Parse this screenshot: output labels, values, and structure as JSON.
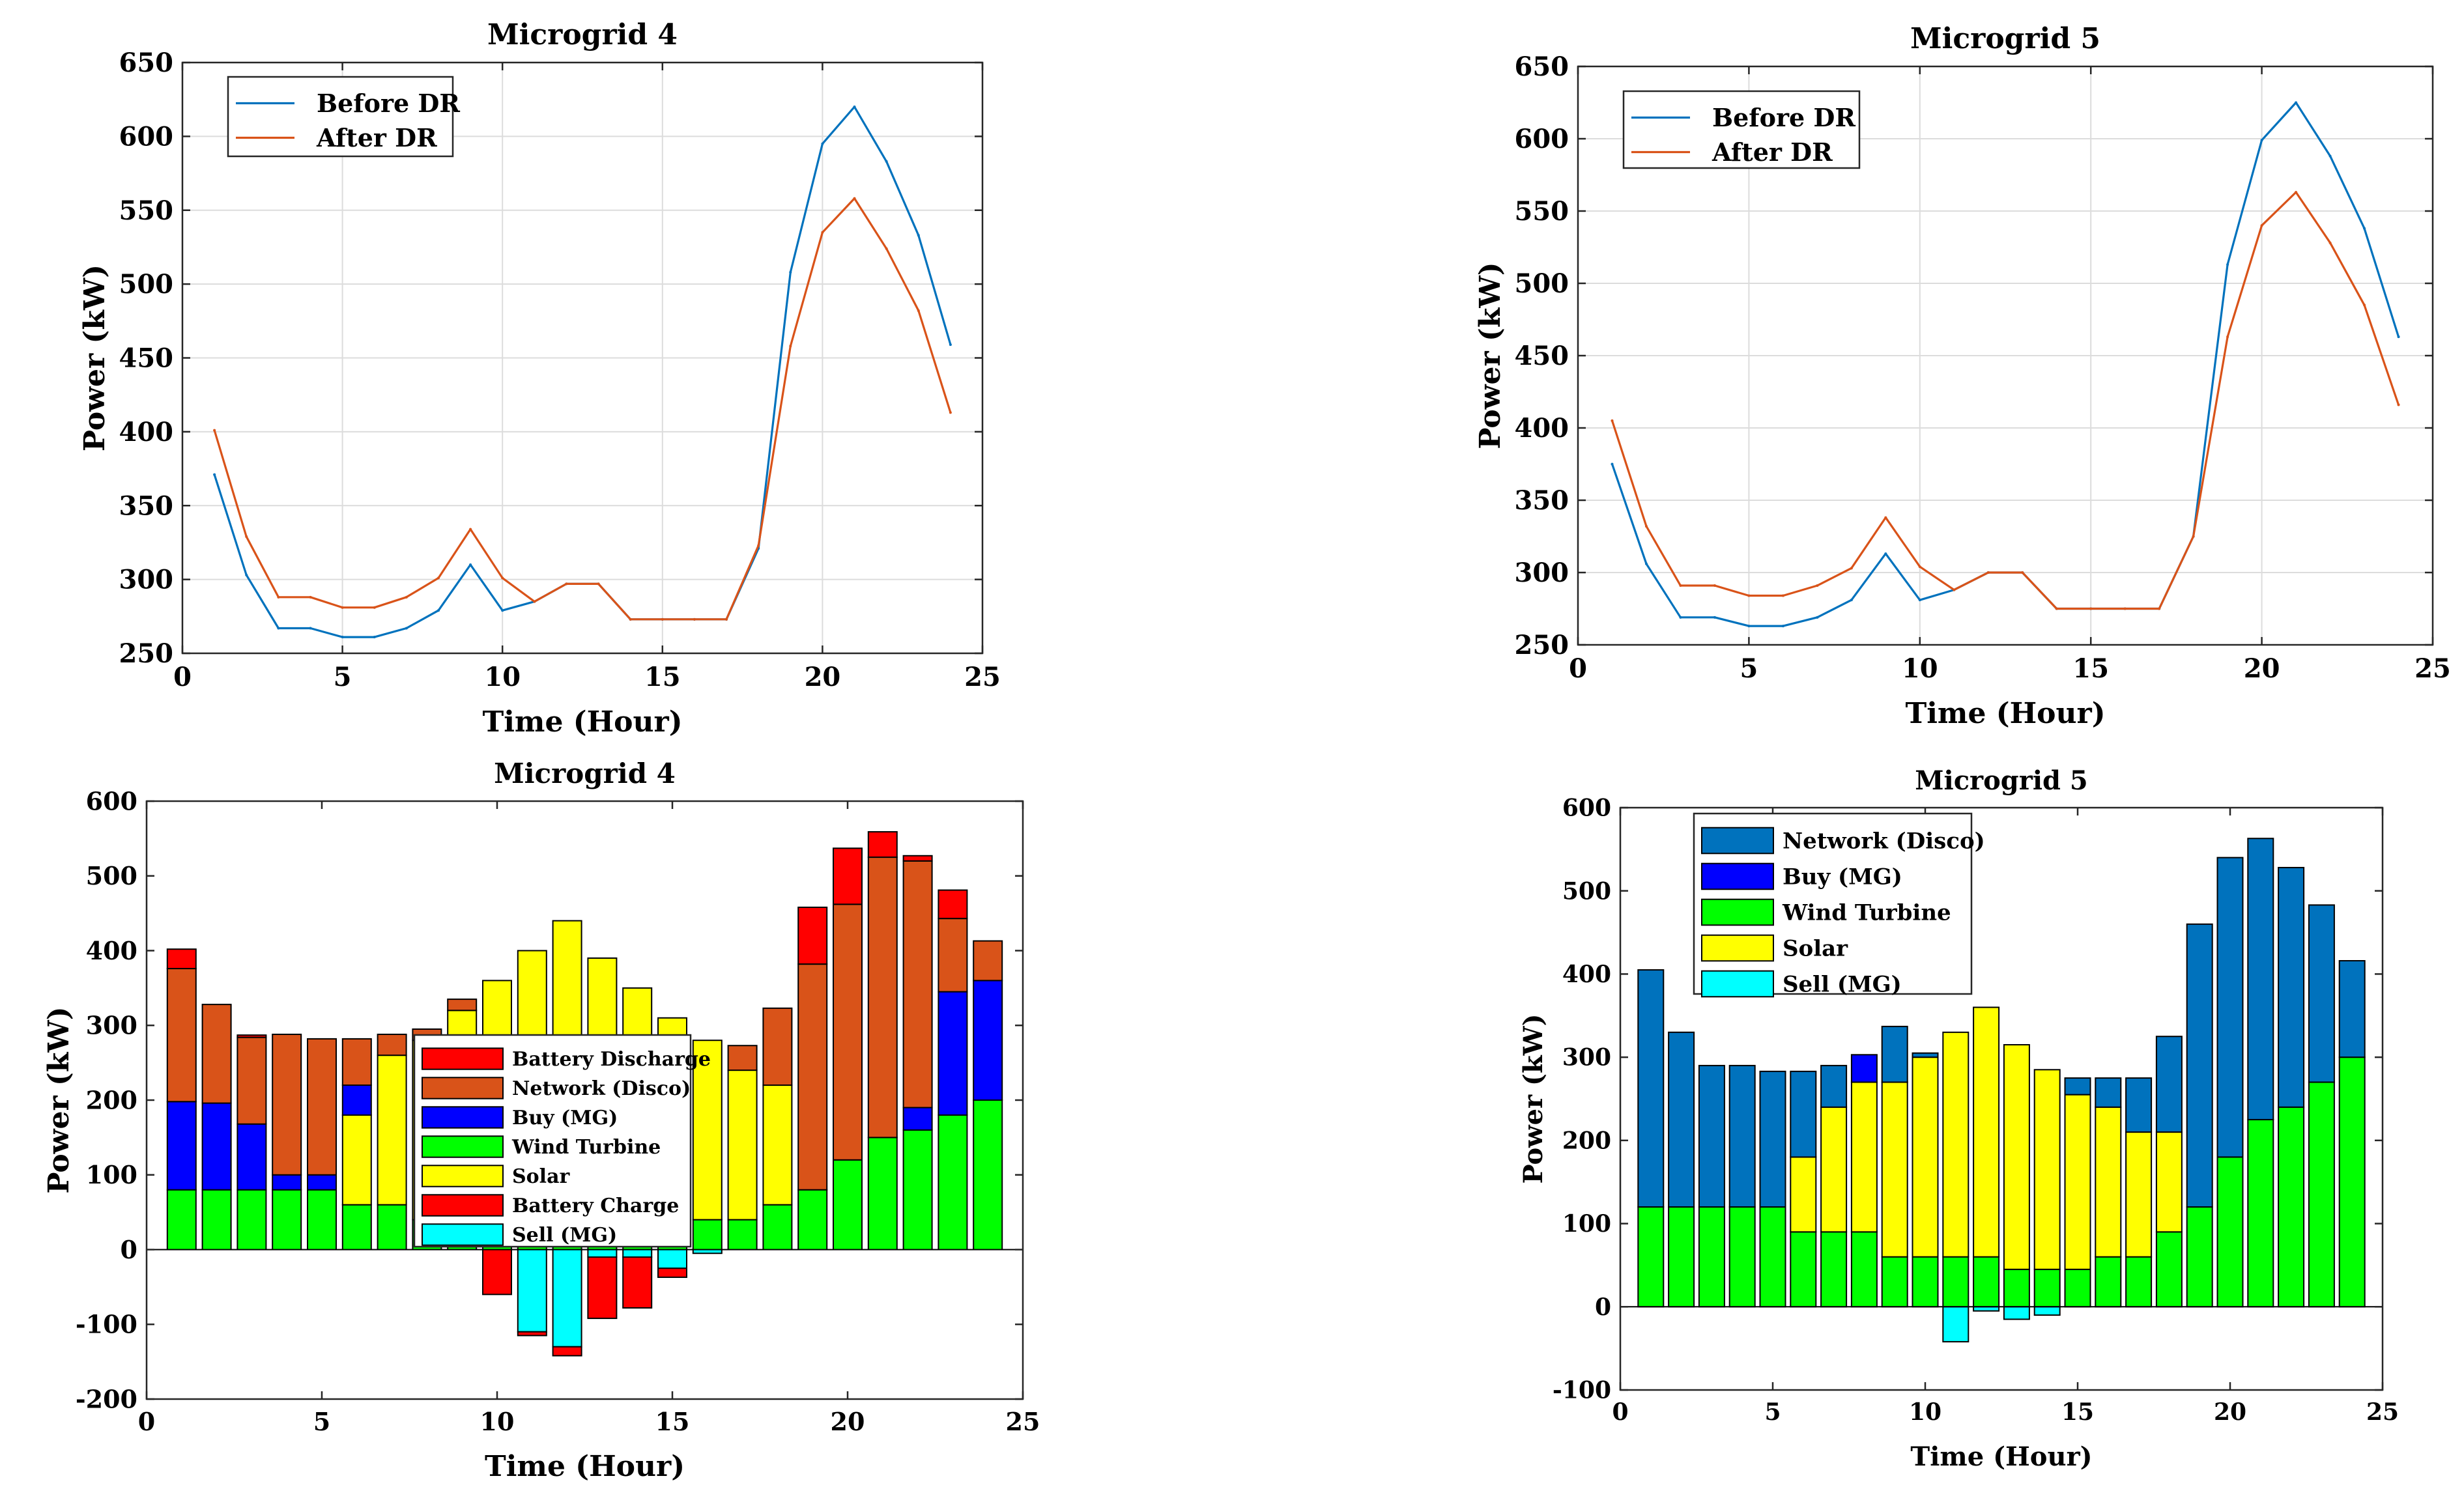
{
  "chart_data": [
    {
      "id": "tl",
      "type": "line",
      "title": "Microgrid 4",
      "xlabel": "Time (Hour)",
      "ylabel": "Power (kW)",
      "xlim": [
        0,
        25
      ],
      "ylim": [
        250,
        650
      ],
      "xticks": [
        0,
        5,
        10,
        15,
        20,
        25
      ],
      "yticks": [
        250,
        300,
        350,
        400,
        450,
        500,
        550,
        600,
        650
      ],
      "grid": true,
      "legend_position": "top-left",
      "x": [
        1,
        2,
        3,
        4,
        5,
        6,
        7,
        8,
        9,
        10,
        11,
        12,
        13,
        14,
        15,
        16,
        17,
        18,
        19,
        20,
        21,
        22,
        23,
        24
      ],
      "series": [
        {
          "name": "Before DR",
          "color": "#0072BD",
          "values": [
            371,
            303,
            267,
            267,
            261,
            261,
            267,
            279,
            310,
            279,
            285,
            297,
            297,
            273,
            273,
            273,
            273,
            321,
            508,
            595,
            620,
            583,
            533,
            459
          ]
        },
        {
          "name": "After DR",
          "color": "#D95319",
          "values": [
            401,
            329,
            288,
            288,
            281,
            281,
            288,
            301,
            334,
            301,
            285,
            297,
            297,
            273,
            273,
            273,
            273,
            323,
            458,
            535,
            558,
            524,
            482,
            413
          ]
        }
      ]
    },
    {
      "id": "tr",
      "type": "line",
      "title": "Microgrid 5",
      "xlabel": "Time (Hour)",
      "ylabel": "Power (kW)",
      "xlim": [
        0,
        25
      ],
      "ylim": [
        250,
        650
      ],
      "xticks": [
        0,
        5,
        10,
        15,
        20,
        25
      ],
      "yticks": [
        250,
        300,
        350,
        400,
        450,
        500,
        550,
        600,
        650
      ],
      "grid": true,
      "legend_position": "top-left",
      "x": [
        1,
        2,
        3,
        4,
        5,
        6,
        7,
        8,
        9,
        10,
        11,
        12,
        13,
        14,
        15,
        16,
        17,
        18,
        19,
        20,
        21,
        22,
        23,
        24
      ],
      "series": [
        {
          "name": "Before DR",
          "color": "#0072BD",
          "values": [
            375,
            306,
            269,
            269,
            263,
            263,
            269,
            281,
            313,
            281,
            288,
            300,
            300,
            275,
            275,
            275,
            275,
            325,
            513,
            599,
            625,
            588,
            538,
            463
          ]
        },
        {
          "name": "After DR",
          "color": "#D95319",
          "values": [
            405,
            332,
            291,
            291,
            284,
            284,
            291,
            303,
            338,
            304,
            288,
            300,
            300,
            275,
            275,
            275,
            275,
            325,
            463,
            540,
            563,
            528,
            485,
            416
          ]
        }
      ]
    },
    {
      "id": "bl",
      "type": "bar",
      "stacked": true,
      "title": "Microgrid 4",
      "xlabel": "Time (Hour)",
      "ylabel": "Power (kW)",
      "xlim": [
        0,
        25
      ],
      "ylim": [
        -200,
        600
      ],
      "xticks": [
        0,
        5,
        10,
        15,
        20,
        25
      ],
      "yticks": [
        -200,
        -100,
        0,
        100,
        200,
        300,
        400,
        500,
        600
      ],
      "grid": false,
      "legend_position": "center",
      "x": [
        1,
        2,
        3,
        4,
        5,
        6,
        7,
        8,
        9,
        10,
        11,
        12,
        13,
        14,
        15,
        16,
        17,
        18,
        19,
        20,
        21,
        22,
        23,
        24
      ],
      "series": [
        {
          "name": "Wind Turbine",
          "legend_order": 4,
          "color": "#00FF00",
          "sign": "positive",
          "values": [
            80,
            80,
            80,
            80,
            80,
            60,
            60,
            40,
            40,
            40,
            40,
            40,
            30,
            30,
            30,
            40,
            40,
            60,
            80,
            120,
            150,
            160,
            180,
            200
          ]
        },
        {
          "name": "Solar",
          "legend_order": 5,
          "color": "#FFFF00",
          "sign": "positive",
          "values": [
            0,
            0,
            0,
            0,
            0,
            120,
            200,
            240,
            280,
            320,
            360,
            400,
            360,
            320,
            280,
            240,
            200,
            160,
            0,
            0,
            0,
            0,
            0,
            0
          ]
        },
        {
          "name": "Buy (MG)",
          "legend_order": 3,
          "color": "#0000FF",
          "sign": "positive",
          "values": [
            118,
            116,
            88,
            20,
            20,
            40,
            0,
            0,
            0,
            0,
            0,
            0,
            0,
            0,
            0,
            0,
            0,
            0,
            0,
            0,
            0,
            30,
            165,
            160
          ]
        },
        {
          "name": "Network (Disco)",
          "legend_order": 2,
          "color": "#D95319",
          "sign": "positive",
          "values": [
            178,
            132,
            116,
            188,
            182,
            62,
            28,
            15,
            15,
            0,
            0,
            0,
            0,
            0,
            0,
            0,
            33,
            103,
            302,
            342,
            375,
            330,
            98,
            53
          ]
        },
        {
          "name": "Battery Discharge",
          "legend_order": 1,
          "color": "#FF0000",
          "sign": "positive",
          "values": [
            26,
            0,
            3,
            0,
            0,
            0,
            0,
            0,
            0,
            0,
            0,
            0,
            0,
            0,
            0,
            0,
            0,
            0,
            76,
            75,
            34,
            7,
            38,
            0
          ]
        },
        {
          "name": "Sell (MG)",
          "legend_order": 7,
          "color": "#00FFFF",
          "sign": "negative",
          "values": [
            0,
            0,
            0,
            0,
            0,
            0,
            0,
            0,
            0,
            0,
            -110,
            -130,
            -10,
            -10,
            -25,
            -5,
            0,
            0,
            0,
            0,
            0,
            0,
            0,
            0
          ]
        },
        {
          "name": "Battery Charge",
          "legend_order": 6,
          "color": "#FF0000",
          "sign": "negative",
          "values": [
            0,
            0,
            0,
            0,
            0,
            0,
            0,
            0,
            0,
            -60,
            -5,
            -12,
            -82,
            -68,
            -12,
            0,
            0,
            0,
            0,
            0,
            0,
            0,
            0,
            0
          ]
        }
      ]
    },
    {
      "id": "br",
      "type": "bar",
      "stacked": true,
      "title": "Microgrid 5",
      "xlabel": "Time (Hour)",
      "ylabel": "Power (kW)",
      "xlim": [
        0,
        25
      ],
      "ylim": [
        -100,
        600
      ],
      "xticks": [
        0,
        5,
        10,
        15,
        20,
        25
      ],
      "yticks": [
        -100,
        0,
        100,
        200,
        300,
        400,
        500,
        600
      ],
      "grid": false,
      "legend_position": "top-left",
      "x": [
        1,
        2,
        3,
        4,
        5,
        6,
        7,
        8,
        9,
        10,
        11,
        12,
        13,
        14,
        15,
        16,
        17,
        18,
        19,
        20,
        21,
        22,
        23,
        24
      ],
      "series": [
        {
          "name": "Wind Turbine",
          "legend_order": 3,
          "color": "#00FF00",
          "sign": "positive",
          "values": [
            120,
            120,
            120,
            120,
            120,
            90,
            90,
            90,
            60,
            60,
            60,
            60,
            45,
            45,
            45,
            60,
            60,
            90,
            120,
            180,
            225,
            240,
            270,
            300
          ]
        },
        {
          "name": "Solar",
          "legend_order": 4,
          "color": "#FFFF00",
          "sign": "positive",
          "values": [
            0,
            0,
            0,
            0,
            0,
            90,
            150,
            180,
            210,
            240,
            270,
            300,
            270,
            240,
            210,
            180,
            150,
            120,
            0,
            0,
            0,
            0,
            0,
            0
          ]
        },
        {
          "name": "Buy (MG)",
          "legend_order": 2,
          "color": "#0000FF",
          "sign": "positive",
          "values": [
            0,
            0,
            0,
            0,
            0,
            0,
            0,
            33,
            0,
            0,
            0,
            0,
            0,
            0,
            0,
            0,
            0,
            0,
            0,
            0,
            0,
            0,
            0,
            0
          ]
        },
        {
          "name": "Network (Disco)",
          "legend_order": 1,
          "color": "#0072BD",
          "sign": "positive",
          "values": [
            285,
            210,
            170,
            170,
            163,
            103,
            50,
            0,
            67,
            5,
            0,
            0,
            0,
            0,
            20,
            35,
            65,
            115,
            340,
            360,
            338,
            288,
            213,
            116
          ]
        },
        {
          "name": "Sell (MG)",
          "legend_order": 5,
          "color": "#00FFFF",
          "sign": "negative",
          "values": [
            0,
            0,
            0,
            0,
            0,
            0,
            0,
            0,
            0,
            0,
            -42,
            -5,
            -15,
            -10,
            0,
            0,
            0,
            0,
            0,
            0,
            0,
            0,
            0,
            0
          ]
        }
      ]
    }
  ]
}
